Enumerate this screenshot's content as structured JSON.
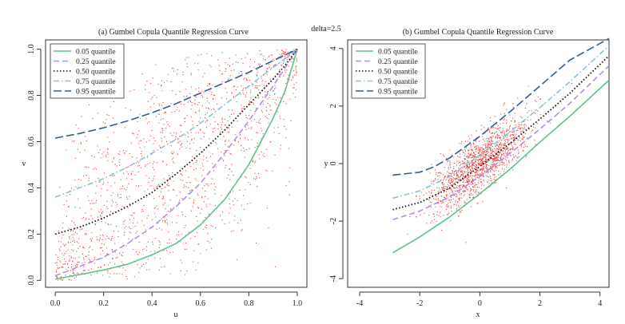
{
  "annotation": "delta=2.5",
  "chart_data": [
    {
      "type": "scatter",
      "title": "(a) Gumbel Copula Quantile Regression Curve",
      "xlabel": "u",
      "ylabel": "v",
      "xlim": [
        -0.04,
        1.04
      ],
      "ylim": [
        -0.03,
        1.04
      ],
      "xticks": [
        "0.0",
        "0.2",
        "0.4",
        "0.6",
        "0.8",
        "1.0"
      ],
      "yticks": [
        "0.0",
        "0.2",
        "0.4",
        "0.6",
        "0.8",
        "1.0"
      ],
      "legend_position": "top-left",
      "scatter": {
        "color": "#e8413a",
        "count": 1500,
        "description": "points concentrated around the diagonal"
      },
      "series": [
        {
          "name": "0.05 quantile",
          "color": "#5cc48a",
          "dash": "solid",
          "x": [
            0,
            0.1,
            0.2,
            0.3,
            0.4,
            0.5,
            0.6,
            0.7,
            0.8,
            0.9,
            0.95,
            1.0
          ],
          "y": [
            0.005,
            0.025,
            0.045,
            0.07,
            0.11,
            0.16,
            0.24,
            0.35,
            0.5,
            0.7,
            0.82,
            1.0
          ]
        },
        {
          "name": "0.25 quantile",
          "color": "#b08fe0",
          "dash": "dash",
          "x": [
            0,
            0.1,
            0.2,
            0.3,
            0.4,
            0.5,
            0.6,
            0.7,
            0.8,
            0.9,
            0.95,
            1.0
          ],
          "y": [
            0.02,
            0.06,
            0.1,
            0.16,
            0.23,
            0.32,
            0.42,
            0.55,
            0.69,
            0.84,
            0.92,
            1.0
          ]
        },
        {
          "name": "0.50 quantile",
          "color": "#111111",
          "dash": "dot",
          "x": [
            0,
            0.1,
            0.2,
            0.3,
            0.4,
            0.5,
            0.6,
            0.7,
            0.8,
            0.9,
            0.95,
            1.0
          ],
          "y": [
            0.2,
            0.23,
            0.27,
            0.32,
            0.38,
            0.46,
            0.55,
            0.65,
            0.76,
            0.87,
            0.93,
            1.0
          ]
        },
        {
          "name": "0.75 quantile",
          "color": "#86c3dc",
          "dash": "dashdot",
          "x": [
            0,
            0.1,
            0.2,
            0.3,
            0.4,
            0.5,
            0.6,
            0.7,
            0.8,
            0.9,
            0.95,
            1.0
          ],
          "y": [
            0.36,
            0.4,
            0.44,
            0.49,
            0.55,
            0.61,
            0.68,
            0.76,
            0.84,
            0.92,
            0.96,
            1.0
          ]
        },
        {
          "name": "0.95 quantile",
          "color": "#2f5f8f",
          "dash": "longdash",
          "x": [
            0,
            0.1,
            0.2,
            0.3,
            0.4,
            0.5,
            0.6,
            0.7,
            0.8,
            0.9,
            0.95,
            1.0
          ],
          "y": [
            0.615,
            0.635,
            0.66,
            0.69,
            0.725,
            0.765,
            0.81,
            0.855,
            0.9,
            0.95,
            0.975,
            1.0
          ]
        }
      ]
    },
    {
      "type": "scatter",
      "title": "(b) Gumbel Copula Quantile Regression Curve",
      "xlabel": "x",
      "ylabel": "y",
      "xlim": [
        -4.4,
        4.3
      ],
      "ylim": [
        -4.3,
        4.3
      ],
      "xticks": [
        "-4",
        "-2",
        "0",
        "2",
        "4"
      ],
      "yticks": [
        "-4",
        "-2",
        "0",
        "2",
        "4"
      ],
      "legend_position": "top-left",
      "scatter": {
        "color": "#e8413a",
        "count": 1500,
        "description": "points concentrated around the origin along the diagonal"
      },
      "series": [
        {
          "name": "0.05 quantile",
          "color": "#5cc48a",
          "dash": "solid",
          "x": [
            -2.9,
            -2,
            -1,
            0,
            1,
            2,
            3,
            4.3
          ],
          "y": [
            -3.1,
            -2.55,
            -1.85,
            -1.05,
            -0.2,
            0.75,
            1.65,
            2.9
          ]
        },
        {
          "name": "0.25 quantile",
          "color": "#b08fe0",
          "dash": "dash",
          "x": [
            -2.9,
            -2,
            -1,
            0,
            1,
            2,
            3,
            4.3
          ],
          "y": [
            -1.95,
            -1.65,
            -1.15,
            -0.45,
            0.35,
            1.2,
            2.1,
            3.4
          ]
        },
        {
          "name": "0.50 quantile",
          "color": "#111111",
          "dash": "dot",
          "x": [
            -2.9,
            -2,
            -1,
            0,
            1,
            2,
            3,
            4.3
          ],
          "y": [
            -1.6,
            -1.35,
            -0.85,
            -0.1,
            0.7,
            1.55,
            2.45,
            3.75
          ]
        },
        {
          "name": "0.75 quantile",
          "color": "#86c3dc",
          "dash": "dashdot",
          "x": [
            -2.9,
            -2,
            -1,
            0,
            1,
            2,
            3,
            4.3
          ],
          "y": [
            -1.2,
            -0.95,
            -0.45,
            0.3,
            1.1,
            1.95,
            2.85,
            4.1
          ]
        },
        {
          "name": "0.95 quantile",
          "color": "#2f5f8f",
          "dash": "longdash",
          "x": [
            -2.9,
            -2,
            -1.5,
            -1,
            0,
            1,
            2,
            3,
            4.3
          ],
          "y": [
            -0.4,
            -0.3,
            -0.1,
            0.2,
            0.95,
            1.8,
            2.7,
            3.6,
            4.35
          ]
        }
      ]
    }
  ]
}
